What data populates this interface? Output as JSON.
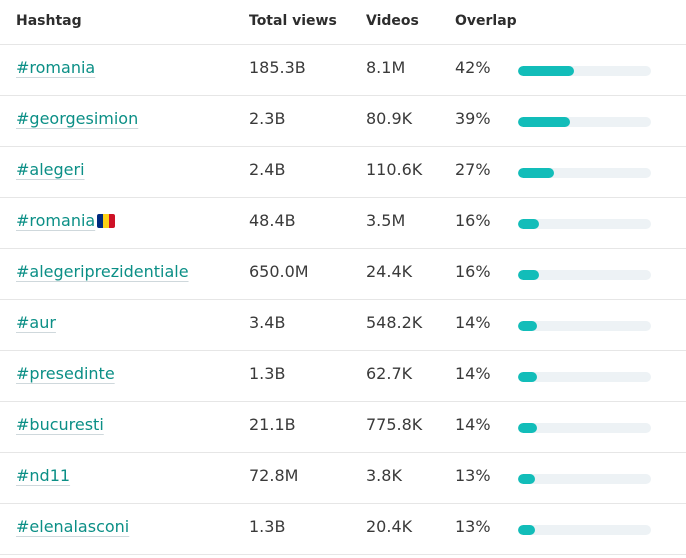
{
  "header": {
    "hashtag": "Hashtag",
    "total_views": "Total views",
    "videos": "Videos",
    "overlap": "Overlap"
  },
  "colors": {
    "accent": "#12bdb9",
    "link": "#0b8f86",
    "track": "#edf2f5",
    "flag_blue": "#002b7f",
    "flag_yellow": "#fcd116",
    "flag_red": "#ce1126"
  },
  "rows": [
    {
      "hashtag": "#romania",
      "views": "185.3B",
      "videos": "8.1M",
      "overlap": "42%",
      "overlap_value": 42
    },
    {
      "hashtag": "#georgesimion",
      "views": "2.3B",
      "videos": "80.9K",
      "overlap": "39%",
      "overlap_value": 39
    },
    {
      "hashtag": "#alegeri",
      "views": "2.4B",
      "videos": "110.6K",
      "overlap": "27%",
      "overlap_value": 27
    },
    {
      "hashtag": "#romania",
      "views": "48.4B",
      "videos": "3.5M",
      "overlap": "16%",
      "overlap_value": 16,
      "flag": "romania-flag-icon"
    },
    {
      "hashtag": "#alegeriprezidentiale",
      "views": "650.0M",
      "videos": "24.4K",
      "overlap": "16%",
      "overlap_value": 16
    },
    {
      "hashtag": "#aur",
      "views": "3.4B",
      "videos": "548.2K",
      "overlap": "14%",
      "overlap_value": 14
    },
    {
      "hashtag": "#presedinte",
      "views": "1.3B",
      "videos": "62.7K",
      "overlap": "14%",
      "overlap_value": 14
    },
    {
      "hashtag": "#bucuresti",
      "views": "21.1B",
      "videos": "775.8K",
      "overlap": "14%",
      "overlap_value": 14
    },
    {
      "hashtag": "#nd11",
      "views": "72.8M",
      "videos": "3.8K",
      "overlap": "13%",
      "overlap_value": 13
    },
    {
      "hashtag": "#elenalasconi",
      "views": "1.3B",
      "videos": "20.4K",
      "overlap": "13%",
      "overlap_value": 13
    }
  ]
}
